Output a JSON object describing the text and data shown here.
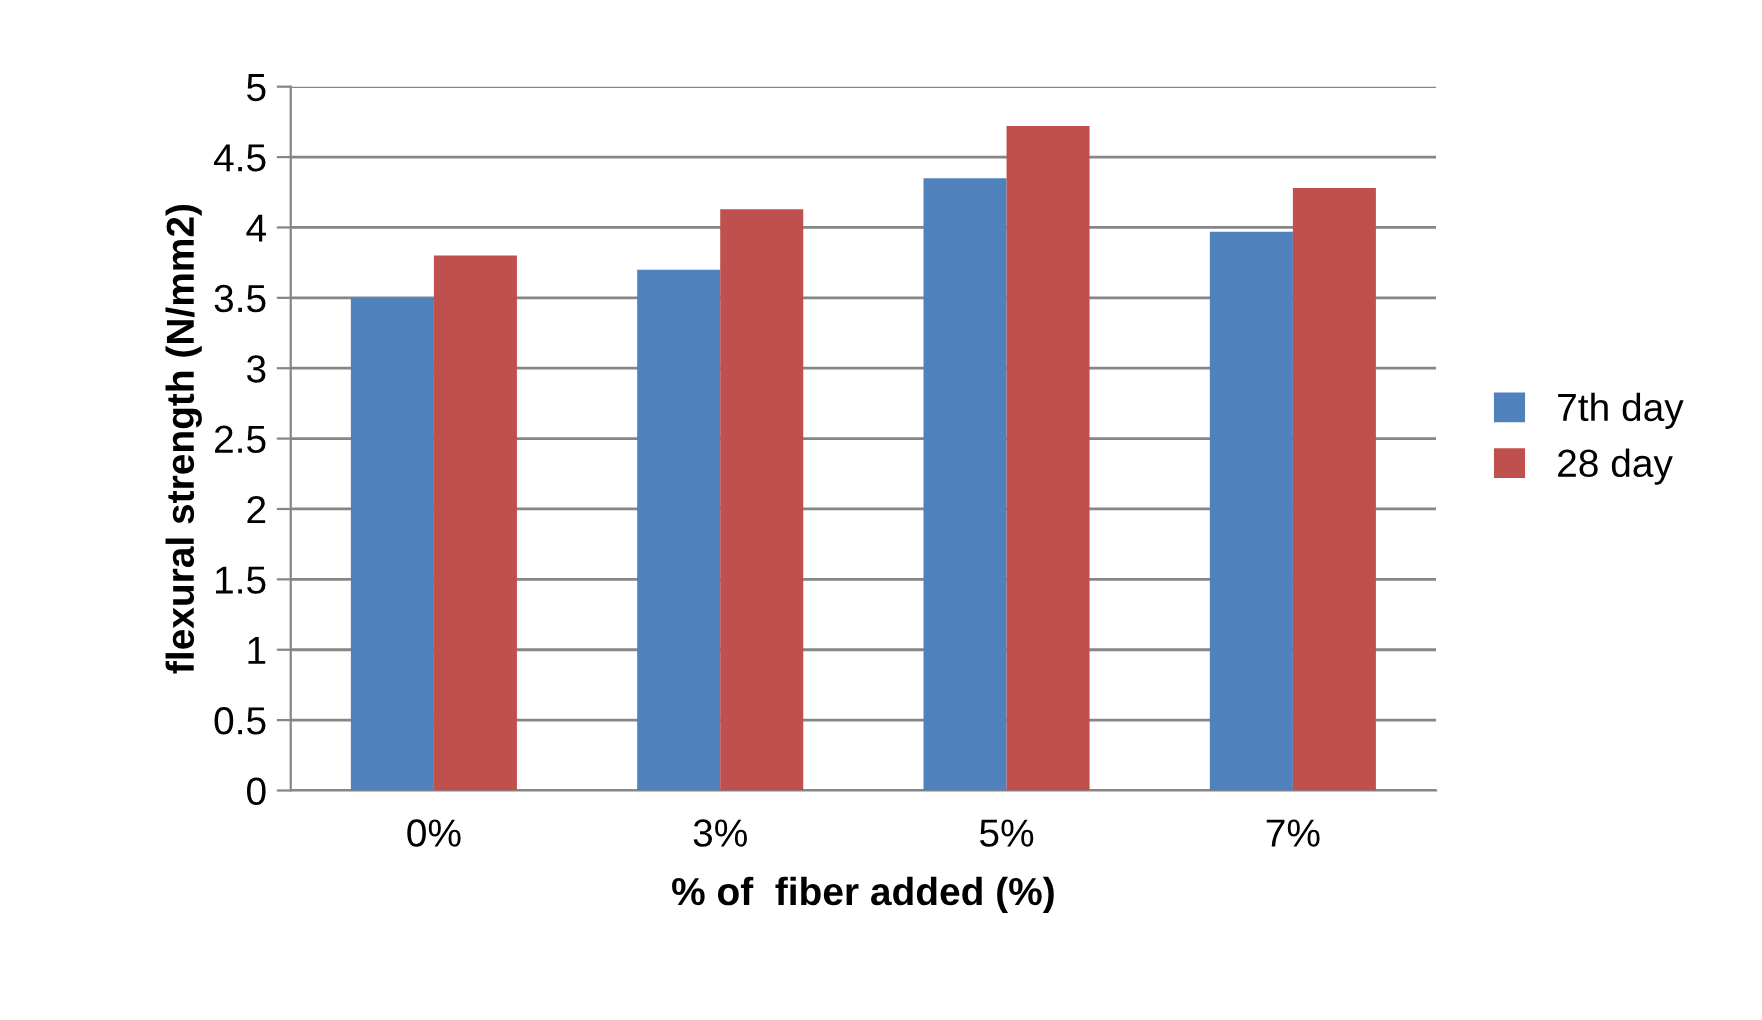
{
  "chart_data": {
    "type": "bar",
    "xlabel": "% of  fiber added (%)",
    "ylabel": "flexural strength (N/mm2)",
    "categories": [
      "0%",
      "3%",
      "5%",
      "7%"
    ],
    "series": [
      {
        "name": "7th day",
        "color": "#4f81bd",
        "values": [
          3.5,
          3.7,
          4.35,
          3.97
        ]
      },
      {
        "name": "28 day",
        "color": "#c0504d",
        "values": [
          3.8,
          4.13,
          4.72,
          4.28
        ]
      }
    ],
    "ylim": [
      0,
      5
    ],
    "yticks": [
      0,
      0.5,
      1,
      1.5,
      2,
      2.5,
      3,
      3.5,
      4,
      4.5,
      5
    ],
    "grid": "y",
    "legend": "right"
  }
}
